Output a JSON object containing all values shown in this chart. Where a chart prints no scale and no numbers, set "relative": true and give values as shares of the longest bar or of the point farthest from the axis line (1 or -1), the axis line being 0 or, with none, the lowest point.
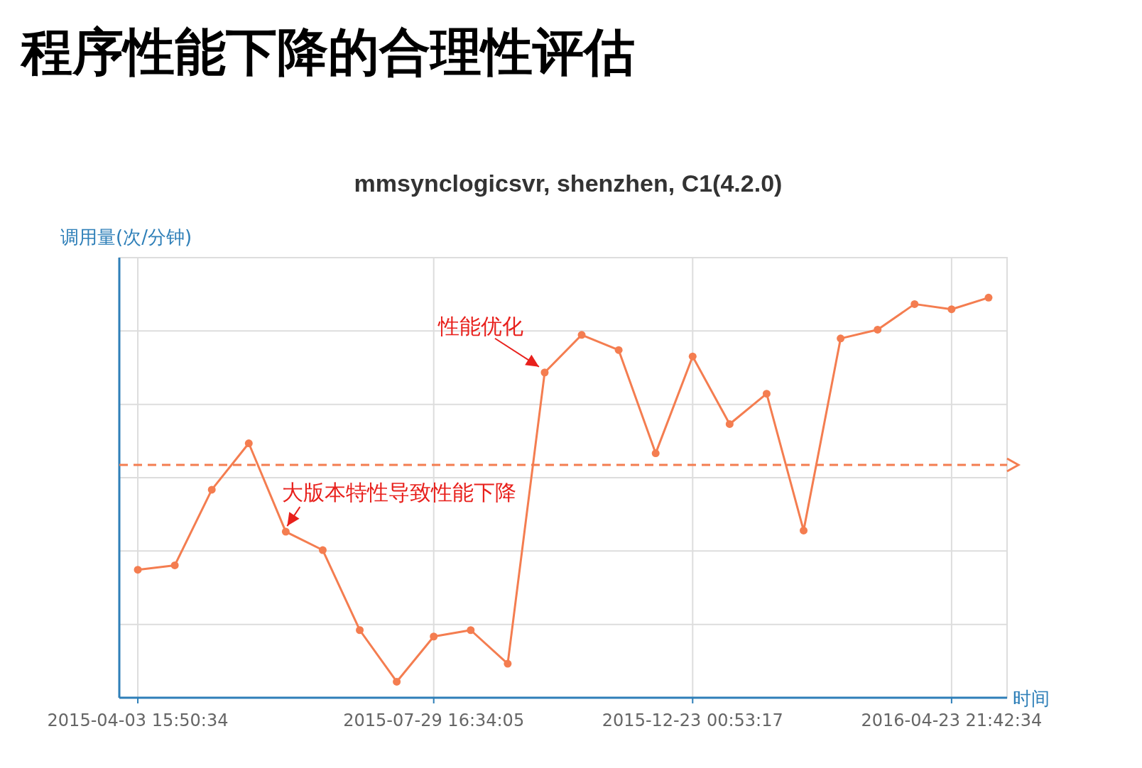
{
  "chart_data": {
    "type": "line",
    "title": "程序性能下降的合理性评估",
    "subtitle": "mmsynclogicsvr, shenzhen, C1(4.2.0)",
    "xlabel": "时间",
    "ylabel": "调用量(次/分钟)",
    "relative": true,
    "categories": [
      "2015-04-03 15:50:34",
      null,
      null,
      null,
      null,
      null,
      null,
      null,
      "2015-07-29 16:34:05",
      null,
      null,
      null,
      null,
      null,
      null,
      "2015-12-23 00:53:17",
      null,
      null,
      null,
      null,
      null,
      null,
      "2016-04-23 21:42:34",
      null
    ],
    "series": [
      {
        "color": "#f47d50",
        "values": [
          0.32,
          0.331,
          0.52,
          0.636,
          0.415,
          0.369,
          0.169,
          0.04,
          0.153,
          0.169,
          0.085,
          0.813,
          0.907,
          0.869,
          0.611,
          0.853,
          0.684,
          0.76,
          0.418,
          0.898,
          0.92,
          0.984,
          0.971,
          1
        ]
      }
    ],
    "ref_lines": [
      {
        "axis": "y",
        "value": 0.582,
        "color": "#f47d50",
        "line_style": "dashed"
      }
    ],
    "annotations": [
      "性能优化",
      "大版本特性导致性能下降"
    ],
    "grid": true,
    "legend": false,
    "marker": "circle",
    "line_style": "solid"
  }
}
